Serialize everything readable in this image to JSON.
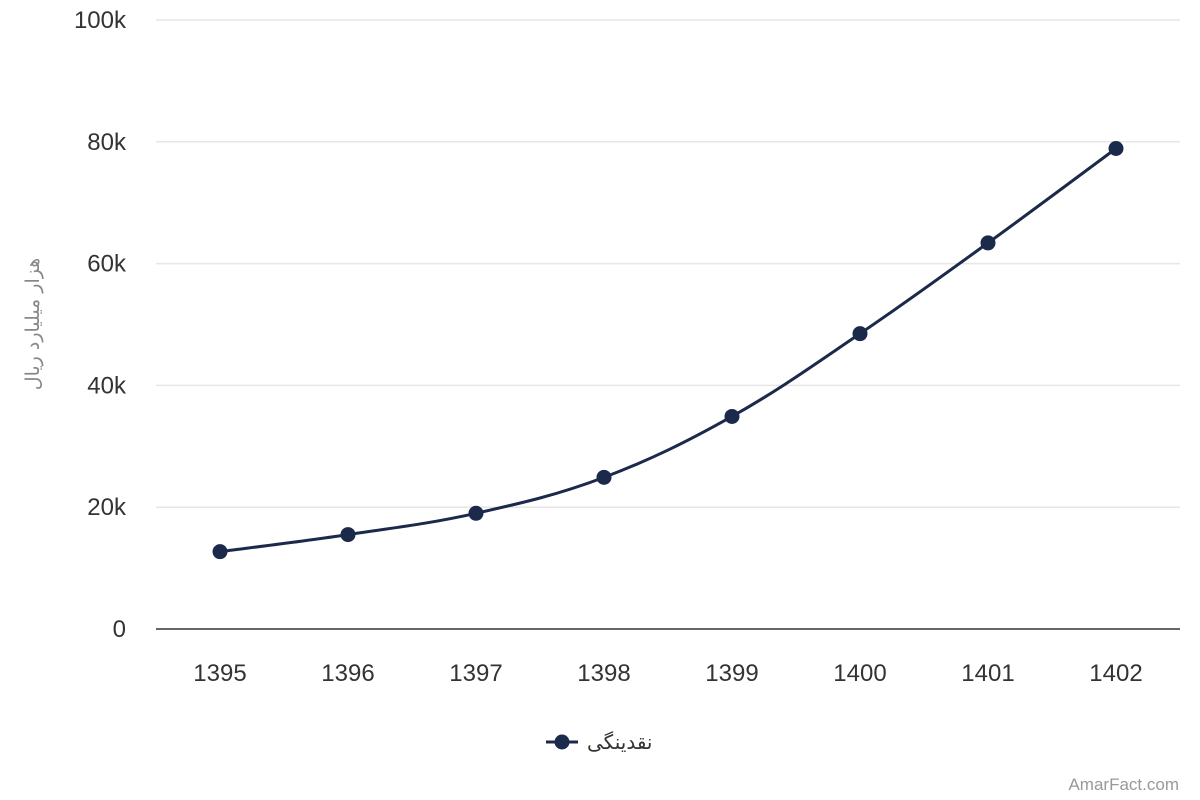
{
  "chart_data": {
    "type": "line",
    "categories": [
      "1395",
      "1396",
      "1397",
      "1398",
      "1399",
      "1400",
      "1401",
      "1402"
    ],
    "series": [
      {
        "name": "نقدینگی",
        "values": [
          12700,
          15500,
          19000,
          24900,
          34900,
          48500,
          63400,
          78900
        ]
      }
    ],
    "ylabel": "هزار میلیارد ریال",
    "ylim": [
      0,
      100000
    ],
    "yticks": [
      {
        "value": 0,
        "label": "0"
      },
      {
        "value": 20000,
        "label": "20k"
      },
      {
        "value": 40000,
        "label": "40k"
      },
      {
        "value": 60000,
        "label": "60k"
      },
      {
        "value": 80000,
        "label": "80k"
      },
      {
        "value": 100000,
        "label": "100k"
      }
    ],
    "grid": true,
    "legend_position": "bottom-center",
    "colors": {
      "series": "#1b2a4a",
      "grid": "#e6e6e6",
      "axis": "#333333"
    },
    "credit": "AmarFact.com"
  }
}
